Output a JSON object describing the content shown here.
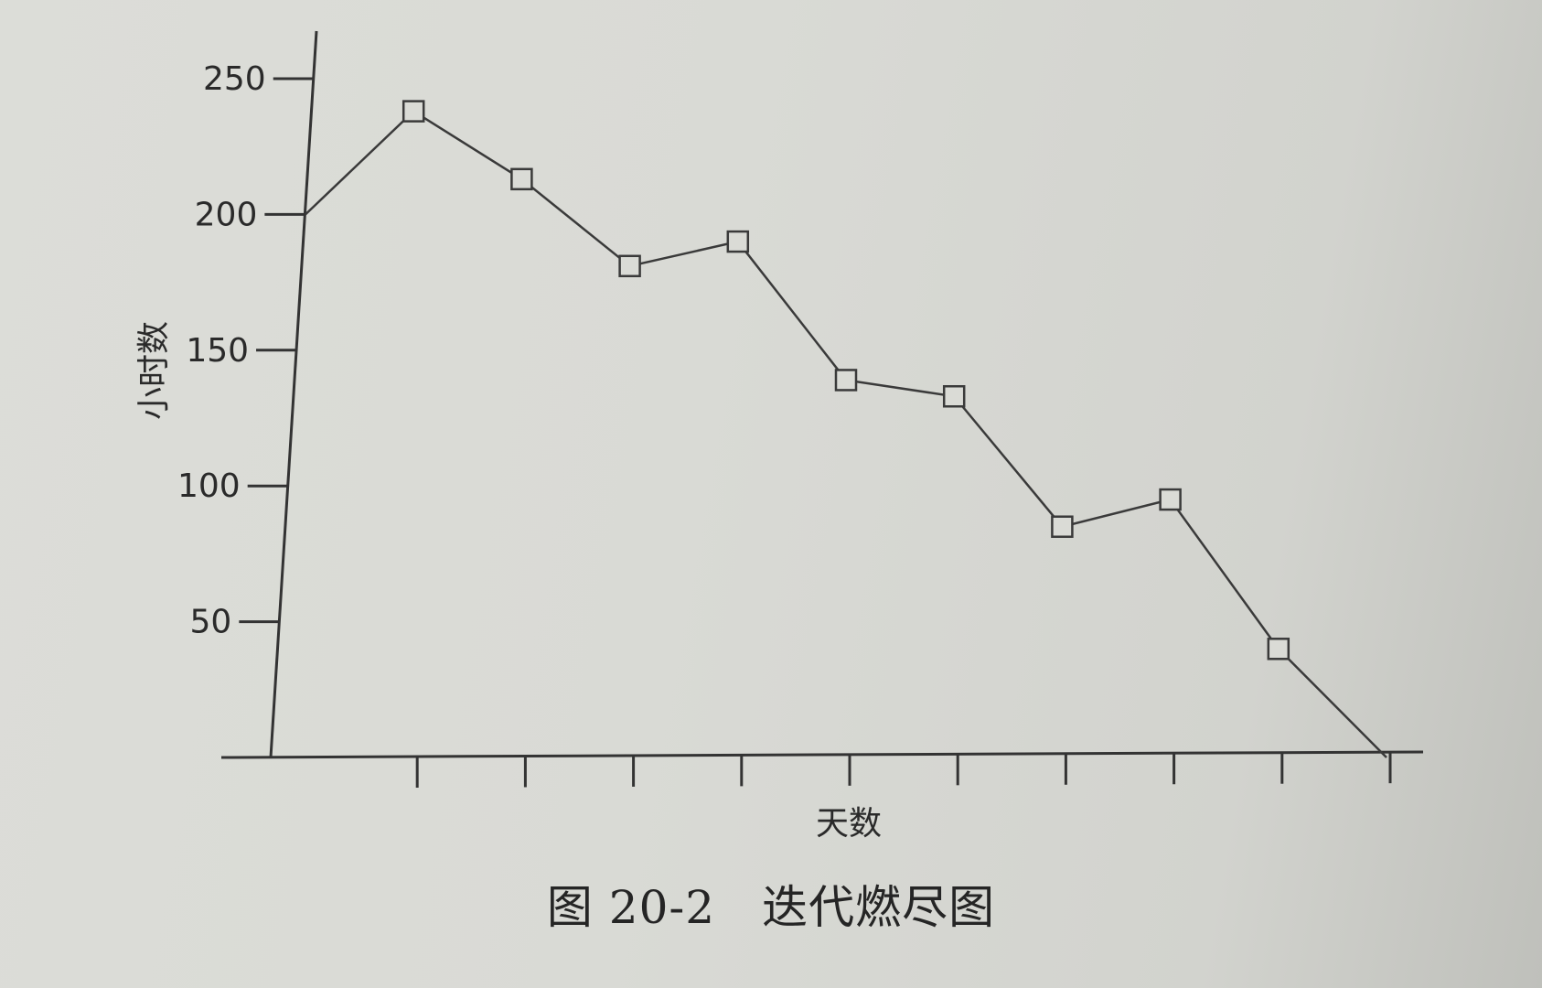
{
  "chart_data": {
    "type": "line",
    "caption": "图 20-2　迭代燃尽图",
    "xlabel": "天数",
    "ylabel": "小时数",
    "y_ticks": [
      50,
      100,
      150,
      200,
      250
    ],
    "ylim": [
      0,
      260
    ],
    "x_count": 11,
    "series": [
      {
        "x": [
          0,
          1,
          2,
          3,
          4,
          5,
          6,
          7,
          8,
          9,
          10
        ],
        "values": [
          200,
          238,
          213,
          181,
          190,
          139,
          133,
          85,
          95,
          40,
          0
        ],
        "markers": [
          false,
          true,
          true,
          true,
          true,
          true,
          true,
          true,
          true,
          true,
          false
        ]
      }
    ],
    "line_color": "#3a3a3a",
    "marker": "open-square",
    "grid": false
  }
}
